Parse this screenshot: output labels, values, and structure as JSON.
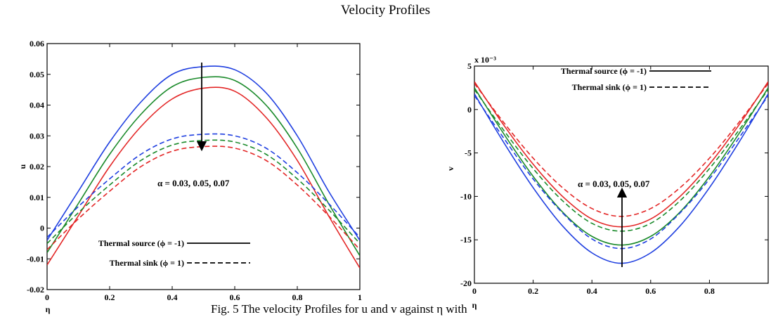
{
  "page": {
    "title": "Velocity Profiles",
    "caption": "Fig. 5 The velocity Profiles for u and v against η with"
  },
  "colors": {
    "alpha_003": "#1f3fe0",
    "alpha_005": "#1a8a2a",
    "alpha_007": "#e32626"
  },
  "chart_data": [
    {
      "type": "line",
      "ylabel": "u",
      "xlabel": "η",
      "xlim": [
        0,
        1
      ],
      "ylim": [
        -0.02,
        0.06
      ],
      "xticks": [
        "0",
        "0.2",
        "0.4",
        "0.6",
        "0.8",
        "1"
      ],
      "yticks": [
        "-0.02",
        "-0.01",
        "0",
        "0.01",
        "0.02",
        "0.03",
        "0.04",
        "0.05",
        "0.06"
      ],
      "x": [
        0,
        0.1,
        0.2,
        0.3,
        0.4,
        0.5,
        0.6,
        0.7,
        0.8,
        0.9,
        1.0
      ],
      "series": [
        {
          "alpha": 0.03,
          "style": "solid",
          "values": [
            -0.004,
            0.012,
            0.028,
            0.041,
            0.05,
            0.0525,
            0.0515,
            0.044,
            0.03,
            0.012,
            -0.004
          ]
        },
        {
          "alpha": 0.05,
          "style": "solid",
          "values": [
            -0.008,
            0.008,
            0.024,
            0.037,
            0.046,
            0.049,
            0.048,
            0.04,
            0.026,
            0.008,
            -0.009
          ]
        },
        {
          "alpha": 0.07,
          "style": "solid",
          "values": [
            -0.012,
            0.004,
            0.02,
            0.033,
            0.042,
            0.0455,
            0.0445,
            0.036,
            0.022,
            0.004,
            -0.013
          ]
        },
        {
          "alpha": 0.03,
          "style": "dashed",
          "values": [
            -0.003,
            0.007,
            0.016,
            0.024,
            0.029,
            0.0305,
            0.03,
            0.026,
            0.018,
            0.008,
            -0.003
          ]
        },
        {
          "alpha": 0.05,
          "style": "dashed",
          "values": [
            -0.005,
            0.005,
            0.014,
            0.022,
            0.027,
            0.0285,
            0.028,
            0.024,
            0.016,
            0.006,
            -0.005
          ]
        },
        {
          "alpha": 0.07,
          "style": "dashed",
          "values": [
            -0.007,
            0.003,
            0.012,
            0.02,
            0.025,
            0.0265,
            0.026,
            0.022,
            0.014,
            0.004,
            -0.007
          ]
        }
      ],
      "legend": [
        {
          "label": "Thermal source (ϕ = -1)",
          "style": "solid"
        },
        {
          "label": "Thermal sink (ϕ = 1)",
          "style": "dashed"
        }
      ],
      "legend_placement": "bottom-center",
      "annotation": "α = 0.03, 0.05, 0.07",
      "arrow": "down",
      "grid": false
    },
    {
      "type": "line",
      "ylabel": "v",
      "xlabel": "η",
      "axis_multiplier": "x 10⁻³",
      "xlim": [
        0,
        1
      ],
      "ylim": [
        -20,
        5
      ],
      "xticks": [
        "0",
        "0.2",
        "0.4",
        "0.6",
        "0.8"
      ],
      "yticks": [
        "-20",
        "-15",
        "-10",
        "-5",
        "0",
        "5"
      ],
      "x": [
        0,
        0.1,
        0.2,
        0.3,
        0.4,
        0.5,
        0.6,
        0.7,
        0.8,
        0.9,
        1.0
      ],
      "series": [
        {
          "alpha": 0.07,
          "style": "solid",
          "values": [
            3.2,
            -1.8,
            -6.3,
            -10.0,
            -12.6,
            -13.5,
            -12.6,
            -10.0,
            -6.3,
            -1.8,
            3.2
          ]
        },
        {
          "alpha": 0.05,
          "style": "solid",
          "values": [
            2.5,
            -2.8,
            -7.7,
            -11.8,
            -14.6,
            -15.6,
            -14.6,
            -11.8,
            -7.7,
            -2.8,
            2.5
          ]
        },
        {
          "alpha": 0.03,
          "style": "solid",
          "values": [
            1.8,
            -3.8,
            -9.0,
            -13.4,
            -16.5,
            -17.7,
            -16.5,
            -13.4,
            -9.0,
            -3.8,
            1.8
          ]
        },
        {
          "alpha": 0.07,
          "style": "dashed",
          "values": [
            3.0,
            -1.5,
            -5.6,
            -9.0,
            -11.4,
            -12.3,
            -11.4,
            -9.0,
            -5.6,
            -1.5,
            3.0
          ]
        },
        {
          "alpha": 0.05,
          "style": "dashed",
          "values": [
            2.3,
            -2.4,
            -6.8,
            -10.5,
            -13.1,
            -14.0,
            -13.1,
            -10.5,
            -6.8,
            -2.4,
            2.3
          ]
        },
        {
          "alpha": 0.03,
          "style": "dashed",
          "values": [
            1.6,
            -3.3,
            -8.0,
            -11.9,
            -14.9,
            -16.0,
            -14.9,
            -11.9,
            -8.0,
            -3.3,
            1.6
          ]
        }
      ],
      "legend": [
        {
          "label": "Thermal source (ϕ = -1)",
          "style": "solid"
        },
        {
          "label": "Thermal sink (ϕ = 1)",
          "style": "dashed"
        }
      ],
      "legend_placement": "top-center",
      "annotation": "α = 0.03, 0.05, 0.07",
      "arrow": "up",
      "grid": false
    }
  ]
}
